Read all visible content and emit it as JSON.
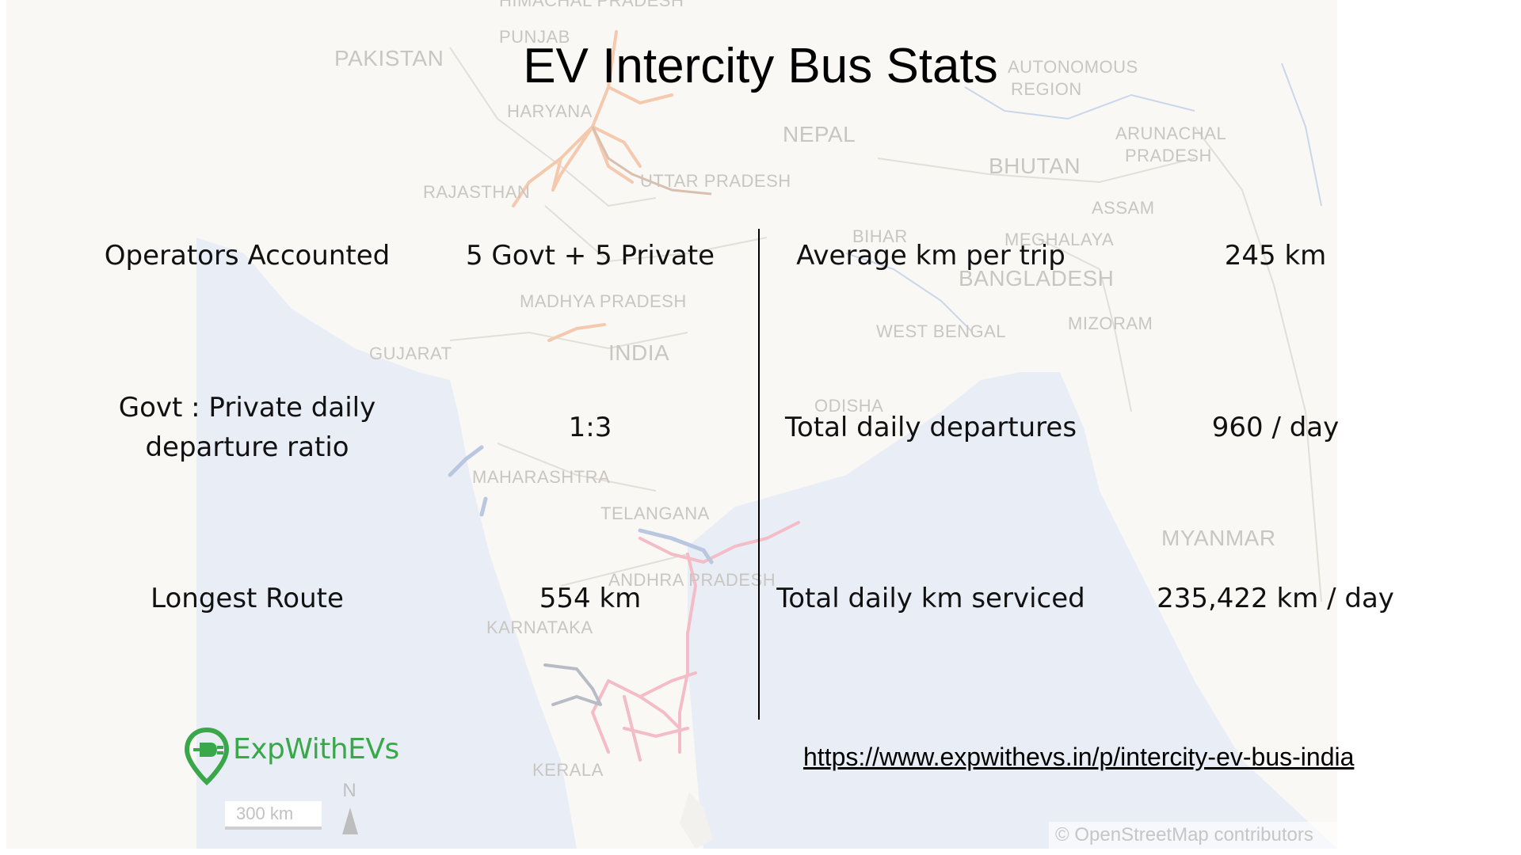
{
  "title": "EV Intercity Bus Stats",
  "left_stats": [
    {
      "label": "Operators Accounted",
      "value": "5 Govt + 5 Private"
    },
    {
      "label_line1": "Govt : Private daily",
      "label_line2": "departure ratio",
      "value": "1:3"
    },
    {
      "label": "Longest Route",
      "value": "554 km"
    }
  ],
  "right_stats": [
    {
      "label": "Average km per trip",
      "value": "245 km"
    },
    {
      "label": "Total daily departures",
      "value": "960 / day"
    },
    {
      "label": "Total daily km serviced",
      "value": "235,422 km / day"
    }
  ],
  "logo": {
    "text": "ExpWithEVs",
    "icon": "ev-plug-location-pin-icon",
    "color": "#3aa84a"
  },
  "url": "https://www.expwithevs.in/p/intercity-ev-bus-india",
  "map": {
    "labels": {
      "himachal": "HIMACHAL PRADESH",
      "pakistan": "PAKISTAN",
      "punjab": "PUNJAB",
      "haryana": "HARYANA",
      "autonomous1": "AUTONOMOUS",
      "autonomous2": "REGION",
      "nepal": "NEPAL",
      "arunachal1": "ARUNACHAL",
      "arunachal2": "PRADESH",
      "bhutan": "BHUTAN",
      "rajasthan": "RAJASTHAN",
      "uttar": "UTTAR PRADESH",
      "assam": "ASSAM",
      "bihar": "BIHAR",
      "meghalaya": "MEGHALAYA",
      "bangladesh": "BANGLADESH",
      "madhya": "MADHYA PRADESH",
      "mizoram": "MIZORAM",
      "gujarat": "GUJARAT",
      "india": "INDIA",
      "westbengal": "WEST BENGAL",
      "odisha": "ODISHA",
      "maharashtra": "MAHARASHTRA",
      "telangana": "TELANGANA",
      "myanmar": "MYANMAR",
      "andhra": "ANDHRA PRADESH",
      "karnataka": "KARNATAKA",
      "kerala": "KERALA"
    },
    "scale_label": "300 km",
    "north_label": "N",
    "attribution": "© OpenStreetMap contributors",
    "colors": {
      "land": "#faf8f5",
      "sea": "#e9eef6",
      "route_orange": "#f4c9ad",
      "route_pink": "#f3bcc6",
      "route_blue": "#b9c7df",
      "route_gray": "#b7bcc4"
    }
  }
}
